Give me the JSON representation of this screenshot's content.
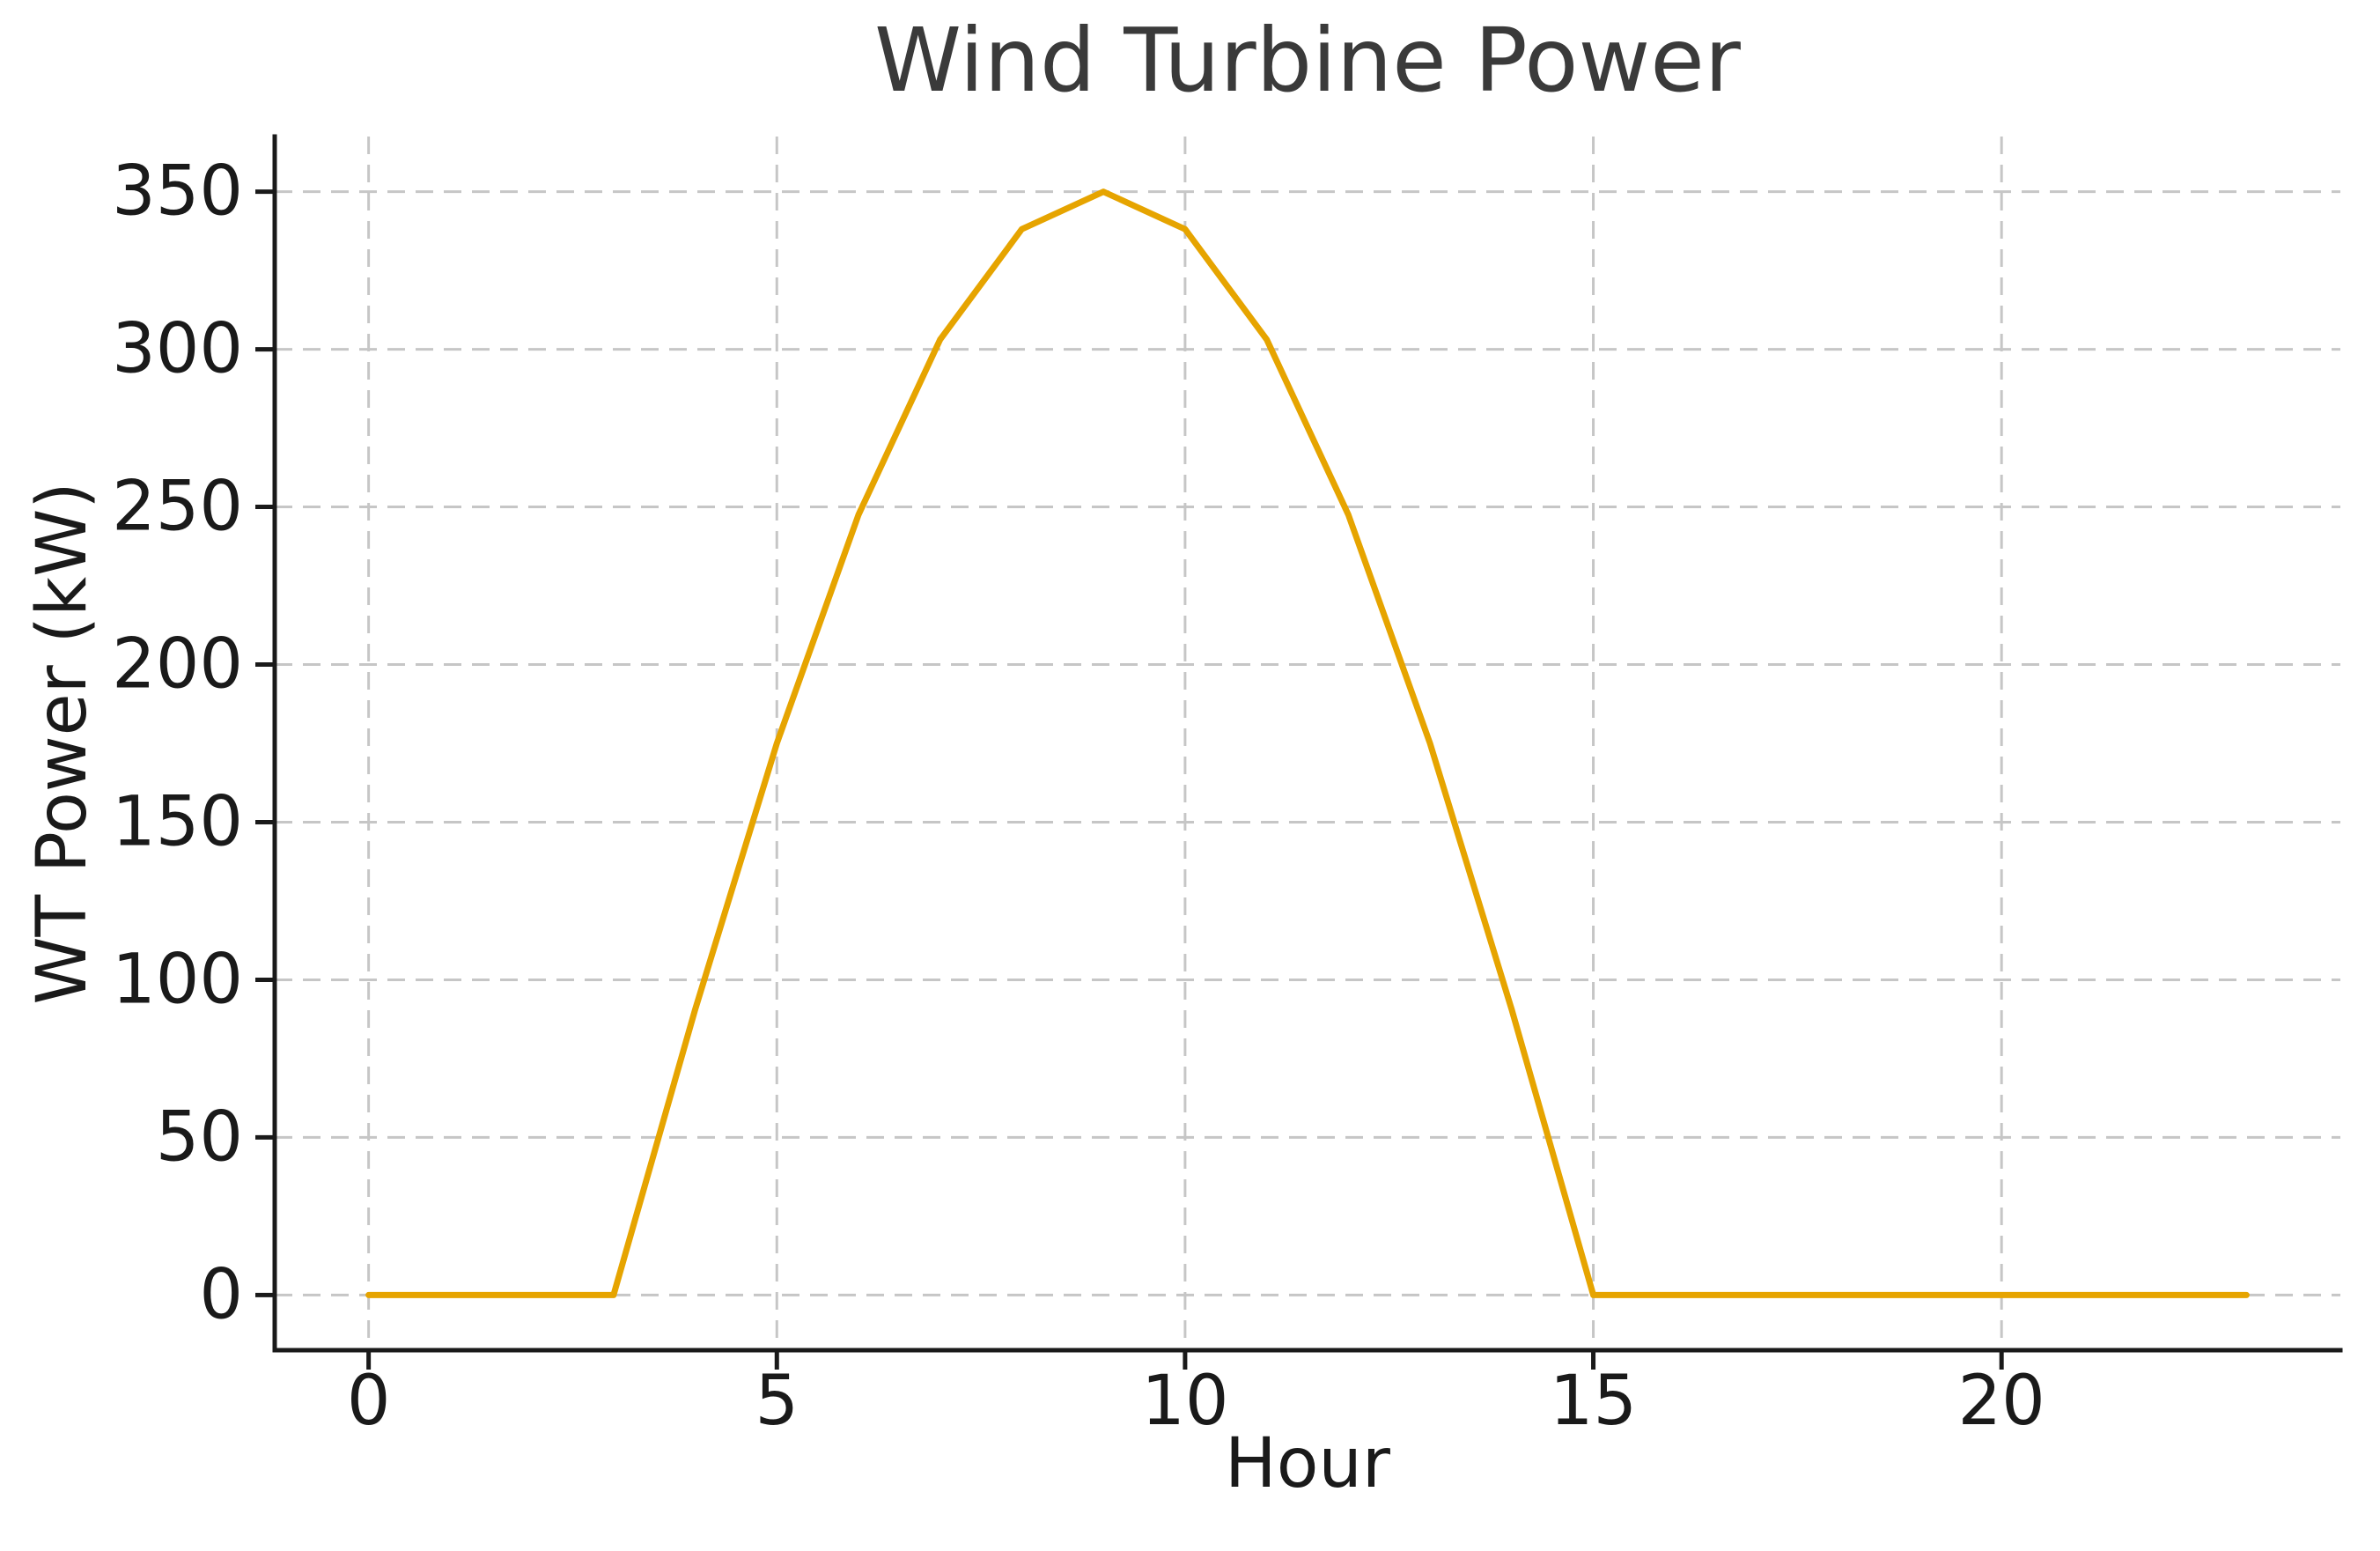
{
  "page": {
    "background": "#FFFFFF"
  },
  "chart_data": {
    "type": "line",
    "title": "Wind Turbine Power",
    "xlabel": "Hour",
    "ylabel": "WT Power (kW)",
    "x": [
      0,
      1,
      2,
      3,
      4,
      5,
      6,
      7,
      8,
      9,
      10,
      11,
      12,
      13,
      14,
      15,
      16,
      17,
      18,
      19,
      20,
      21,
      22,
      23
    ],
    "series": [
      {
        "name": "WT Power",
        "color": "#E6A400",
        "values": [
          0,
          0,
          0,
          0,
          90.6,
          175,
          247.5,
          303.1,
          338.1,
          350,
          338.1,
          303.1,
          247.5,
          175,
          90.6,
          0,
          0,
          0,
          0,
          0,
          0,
          0,
          0,
          0
        ]
      }
    ],
    "xlim": [
      -1.15,
      24.15
    ],
    "ylim": [
      -17.5,
      367.5
    ],
    "xticks": [
      0,
      5,
      10,
      15,
      20
    ],
    "yticks": [
      0,
      50,
      100,
      150,
      200,
      250,
      300,
      350
    ],
    "grid": "dashed",
    "legend_position": "none",
    "line_width": 7,
    "styles": {
      "grid_color": "#C6C6C6",
      "spine_color": "#1A1A1A",
      "tick_label_color": "#1A1A1A",
      "axis_label_color": "#1A1A1A",
      "title_color": "#3A3A3A"
    }
  }
}
